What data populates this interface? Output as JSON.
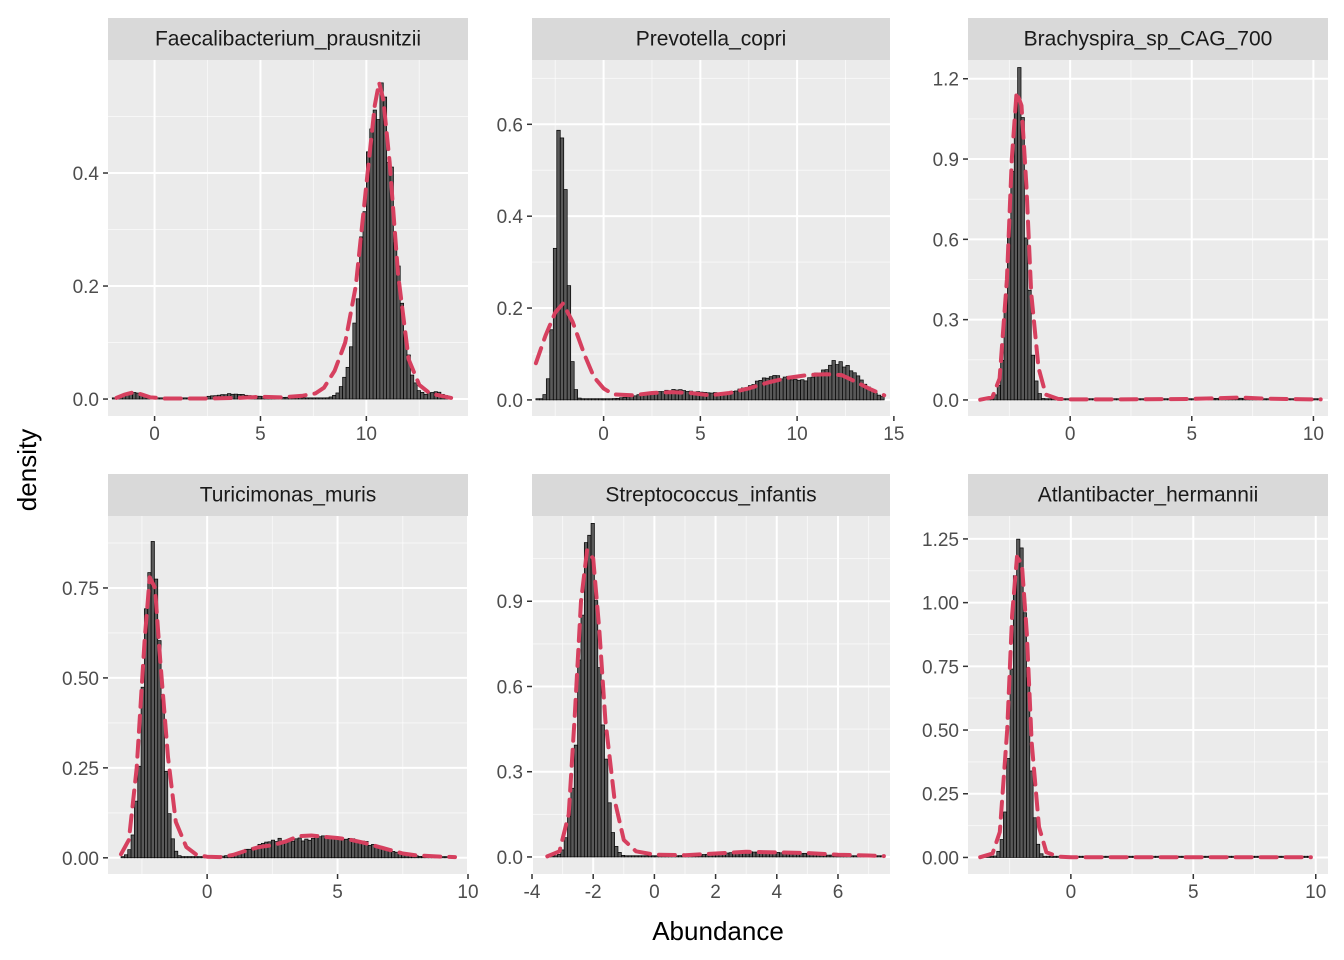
{
  "chart_data": {
    "type": "faceted_histogram_density",
    "xlabel": "Abundance",
    "ylabel": "density",
    "colors": {
      "panel_background": "#ebebeb",
      "strip_background": "#d9d9d9",
      "grid_major": "#ffffff",
      "histogram_bar": "#000000",
      "density_line": "#d6405f"
    },
    "density_line_style": "dashed",
    "grid": true,
    "panels": [
      {
        "title": "Faecalibacterium_prausnitzii",
        "xlim": [
          -2.2,
          14.8
        ],
        "ylim": [
          -0.03,
          0.6
        ],
        "x_ticks": [
          0,
          5,
          10
        ],
        "x_tick_labels": [
          "0",
          "5",
          "10"
        ],
        "y_ticks": [
          0,
          0.2,
          0.4
        ],
        "y_tick_labels": [
          "0.0",
          "0.2",
          "0.4"
        ],
        "hist_range": [
          -2.0,
          14.0
        ],
        "components": [
          {
            "w": 0.012,
            "m": -1.0,
            "s": 0.4
          },
          {
            "w": 0.012,
            "m": 3.5,
            "s": 0.8
          },
          {
            "w": 0.018,
            "m": 5.0,
            "s": 2.0
          },
          {
            "w": 0.95,
            "m": 10.6,
            "s": 0.7
          },
          {
            "w": 0.012,
            "m": 13.3,
            "s": 0.4
          }
        ],
        "density": [
          [
            -1.8,
            0.002
          ],
          [
            -1.4,
            0.008
          ],
          [
            -1.0,
            0.012
          ],
          [
            -0.6,
            0.008
          ],
          [
            -0.2,
            0.003
          ],
          [
            0.5,
            0.001
          ],
          [
            2.5,
            0.001
          ],
          [
            4.0,
            0.002
          ],
          [
            5.0,
            0.004
          ],
          [
            6.0,
            0.003
          ],
          [
            7.0,
            0.006
          ],
          [
            7.6,
            0.01
          ],
          [
            8.0,
            0.02
          ],
          [
            8.5,
            0.05
          ],
          [
            9.0,
            0.1
          ],
          [
            9.5,
            0.2
          ],
          [
            10.0,
            0.38
          ],
          [
            10.4,
            0.52
          ],
          [
            10.6,
            0.56
          ],
          [
            10.8,
            0.53
          ],
          [
            11.1,
            0.42
          ],
          [
            11.5,
            0.22
          ],
          [
            12.0,
            0.07
          ],
          [
            12.5,
            0.025
          ],
          [
            13.0,
            0.01
          ],
          [
            13.5,
            0.006
          ],
          [
            14.0,
            0.002
          ]
        ]
      },
      {
        "title": "Prevotella_copri",
        "xlim": [
          -3.7,
          14.8
        ],
        "ylim": [
          -0.035,
          0.74
        ],
        "x_ticks": [
          0,
          5,
          10,
          15
        ],
        "x_tick_labels": [
          "0",
          "5",
          "10",
          "15"
        ],
        "y_ticks": [
          0,
          0.2,
          0.4,
          0.6
        ],
        "y_tick_labels": [
          "0.0",
          "0.2",
          "0.4",
          "0.6"
        ],
        "hist_range": [
          -3.5,
          14.5
        ],
        "components": [
          {
            "w": 0.46,
            "m": -2.2,
            "s": 0.3
          },
          {
            "w": 0.06,
            "m": 3.5,
            "s": 1.5
          },
          {
            "w": 0.15,
            "m": 9.0,
            "s": 1.3
          },
          {
            "w": 0.2,
            "m": 12.2,
            "s": 1.0
          },
          {
            "w": 0.05,
            "m": 6.0,
            "s": 2.5
          }
        ],
        "density": [
          [
            -3.5,
            0.08
          ],
          [
            -3.0,
            0.14
          ],
          [
            -2.5,
            0.19
          ],
          [
            -2.1,
            0.21
          ],
          [
            -1.6,
            0.17
          ],
          [
            -1.0,
            0.1
          ],
          [
            -0.5,
            0.05
          ],
          [
            0.0,
            0.025
          ],
          [
            0.5,
            0.012
          ],
          [
            1.5,
            0.01
          ],
          [
            2.5,
            0.015
          ],
          [
            3.5,
            0.017
          ],
          [
            4.5,
            0.015
          ],
          [
            5.5,
            0.01
          ],
          [
            6.5,
            0.015
          ],
          [
            7.5,
            0.025
          ],
          [
            8.5,
            0.038
          ],
          [
            9.5,
            0.048
          ],
          [
            10.5,
            0.054
          ],
          [
            11.5,
            0.056
          ],
          [
            12.3,
            0.054
          ],
          [
            13.0,
            0.04
          ],
          [
            13.7,
            0.025
          ],
          [
            14.5,
            0.01
          ]
        ]
      },
      {
        "title": "Brachyspira_sp_CAG_700",
        "xlim": [
          -4.2,
          10.6
        ],
        "ylim": [
          -0.06,
          1.27
        ],
        "x_ticks": [
          0,
          5,
          10
        ],
        "x_tick_labels": [
          "0",
          "5",
          "10"
        ],
        "y_ticks": [
          0,
          0.3,
          0.6,
          0.9,
          1.2
        ],
        "y_tick_labels": [
          "0.0",
          "0.3",
          "0.6",
          "0.9",
          "1.2"
        ],
        "hist_range": [
          -3.7,
          10.3
        ],
        "components": [
          {
            "w": 0.94,
            "m": -2.15,
            "s": 0.32
          },
          {
            "w": 0.02,
            "m": 6.5,
            "s": 1.2
          }
        ],
        "density": [
          [
            -3.7,
            0.001
          ],
          [
            -3.2,
            0.01
          ],
          [
            -2.9,
            0.08
          ],
          [
            -2.6,
            0.45
          ],
          [
            -2.4,
            0.9
          ],
          [
            -2.2,
            1.15
          ],
          [
            -2.0,
            1.1
          ],
          [
            -1.8,
            0.8
          ],
          [
            -1.6,
            0.4
          ],
          [
            -1.3,
            0.12
          ],
          [
            -1.0,
            0.02
          ],
          [
            -0.5,
            0.004
          ],
          [
            0.0,
            0.002
          ],
          [
            2.0,
            0.002
          ],
          [
            4.0,
            0.003
          ],
          [
            5.0,
            0.004
          ],
          [
            6.0,
            0.006
          ],
          [
            7.0,
            0.009
          ],
          [
            8.0,
            0.005
          ],
          [
            9.0,
            0.003
          ],
          [
            10.3,
            0.002
          ]
        ]
      },
      {
        "title": "Turicimonas_muris",
        "xlim": [
          -3.8,
          10.0
        ],
        "ylim": [
          -0.045,
          0.95
        ],
        "x_ticks": [
          0,
          5,
          10
        ],
        "x_tick_labels": [
          "0",
          "5",
          "10"
        ],
        "y_ticks": [
          0,
          0.25,
          0.5,
          0.75
        ],
        "y_tick_labels": [
          "0.00",
          "0.25",
          "0.50",
          "0.75"
        ],
        "hist_range": [
          -3.3,
          9.5
        ],
        "components": [
          {
            "w": 0.72,
            "m": -2.1,
            "s": 0.33
          },
          {
            "w": 0.08,
            "m": 2.5,
            "s": 0.9
          },
          {
            "w": 0.2,
            "m": 5.0,
            "s": 1.4
          }
        ],
        "density": [
          [
            -3.3,
            0.01
          ],
          [
            -3.0,
            0.05
          ],
          [
            -2.7,
            0.25
          ],
          [
            -2.4,
            0.6
          ],
          [
            -2.2,
            0.78
          ],
          [
            -2.0,
            0.75
          ],
          [
            -1.8,
            0.55
          ],
          [
            -1.5,
            0.28
          ],
          [
            -1.2,
            0.1
          ],
          [
            -0.8,
            0.03
          ],
          [
            -0.4,
            0.008
          ],
          [
            0.0,
            0.003
          ],
          [
            0.5,
            0.002
          ],
          [
            1.0,
            0.008
          ],
          [
            1.5,
            0.02
          ],
          [
            2.0,
            0.03
          ],
          [
            2.5,
            0.035
          ],
          [
            3.0,
            0.045
          ],
          [
            3.5,
            0.06
          ],
          [
            4.0,
            0.062
          ],
          [
            4.5,
            0.058
          ],
          [
            5.0,
            0.055
          ],
          [
            5.5,
            0.05
          ],
          [
            6.0,
            0.042
          ],
          [
            6.5,
            0.032
          ],
          [
            7.0,
            0.022
          ],
          [
            7.5,
            0.012
          ],
          [
            8.0,
            0.007
          ],
          [
            9.0,
            0.003
          ],
          [
            9.5,
            0.002
          ]
        ]
      },
      {
        "title": "Streptococcus_infantis",
        "xlim": [
          -4.0,
          7.7
        ],
        "ylim": [
          -0.06,
          1.2
        ],
        "x_ticks": [
          -4,
          -2,
          0,
          2,
          4,
          6
        ],
        "x_tick_labels": [
          "-4",
          "-2",
          "0",
          "2",
          "4",
          "6"
        ],
        "y_ticks": [
          0,
          0.3,
          0.6,
          0.9
        ],
        "y_tick_labels": [
          "0.0",
          "0.3",
          "0.6",
          "0.9"
        ],
        "hist_range": [
          -3.5,
          7.5
        ],
        "components": [
          {
            "w": 0.93,
            "m": -2.1,
            "s": 0.33
          },
          {
            "w": 0.07,
            "m": 3.5,
            "s": 1.6
          }
        ],
        "density": [
          [
            -3.5,
            0.002
          ],
          [
            -3.1,
            0.02
          ],
          [
            -2.8,
            0.15
          ],
          [
            -2.6,
            0.5
          ],
          [
            -2.4,
            0.9
          ],
          [
            -2.2,
            1.08
          ],
          [
            -2.0,
            1.05
          ],
          [
            -1.8,
            0.8
          ],
          [
            -1.6,
            0.48
          ],
          [
            -1.3,
            0.2
          ],
          [
            -1.0,
            0.06
          ],
          [
            -0.6,
            0.02
          ],
          [
            0.0,
            0.008
          ],
          [
            1.0,
            0.006
          ],
          [
            2.0,
            0.012
          ],
          [
            3.0,
            0.018
          ],
          [
            4.0,
            0.016
          ],
          [
            5.0,
            0.014
          ],
          [
            6.0,
            0.008
          ],
          [
            7.0,
            0.005
          ],
          [
            7.5,
            0.003
          ]
        ]
      },
      {
        "title": "Atlantibacter_hermannii",
        "xlim": [
          -4.2,
          10.5
        ],
        "ylim": [
          -0.065,
          1.34
        ],
        "x_ticks": [
          0,
          5,
          10
        ],
        "x_tick_labels": [
          "0",
          "5",
          "10"
        ],
        "y_ticks": [
          0,
          0.25,
          0.5,
          0.75,
          1.0,
          1.25
        ],
        "y_tick_labels": [
          "0.00",
          "0.25",
          "0.50",
          "0.75",
          "1.00",
          "1.25"
        ],
        "hist_range": [
          -3.7,
          9.8
        ],
        "components": [
          {
            "w": 0.985,
            "m": -2.1,
            "s": 0.3
          },
          {
            "w": 0.005,
            "m": 4.0,
            "s": 3.0
          }
        ],
        "density": [
          [
            -3.7,
            0.001
          ],
          [
            -3.2,
            0.015
          ],
          [
            -2.9,
            0.1
          ],
          [
            -2.6,
            0.5
          ],
          [
            -2.4,
            0.95
          ],
          [
            -2.2,
            1.18
          ],
          [
            -2.0,
            1.15
          ],
          [
            -1.8,
            0.88
          ],
          [
            -1.6,
            0.45
          ],
          [
            -1.3,
            0.12
          ],
          [
            -1.0,
            0.02
          ],
          [
            -0.5,
            0.003
          ],
          [
            0.0,
            0.001
          ],
          [
            5.0,
            0.001
          ],
          [
            9.8,
            0.001
          ]
        ]
      }
    ]
  }
}
